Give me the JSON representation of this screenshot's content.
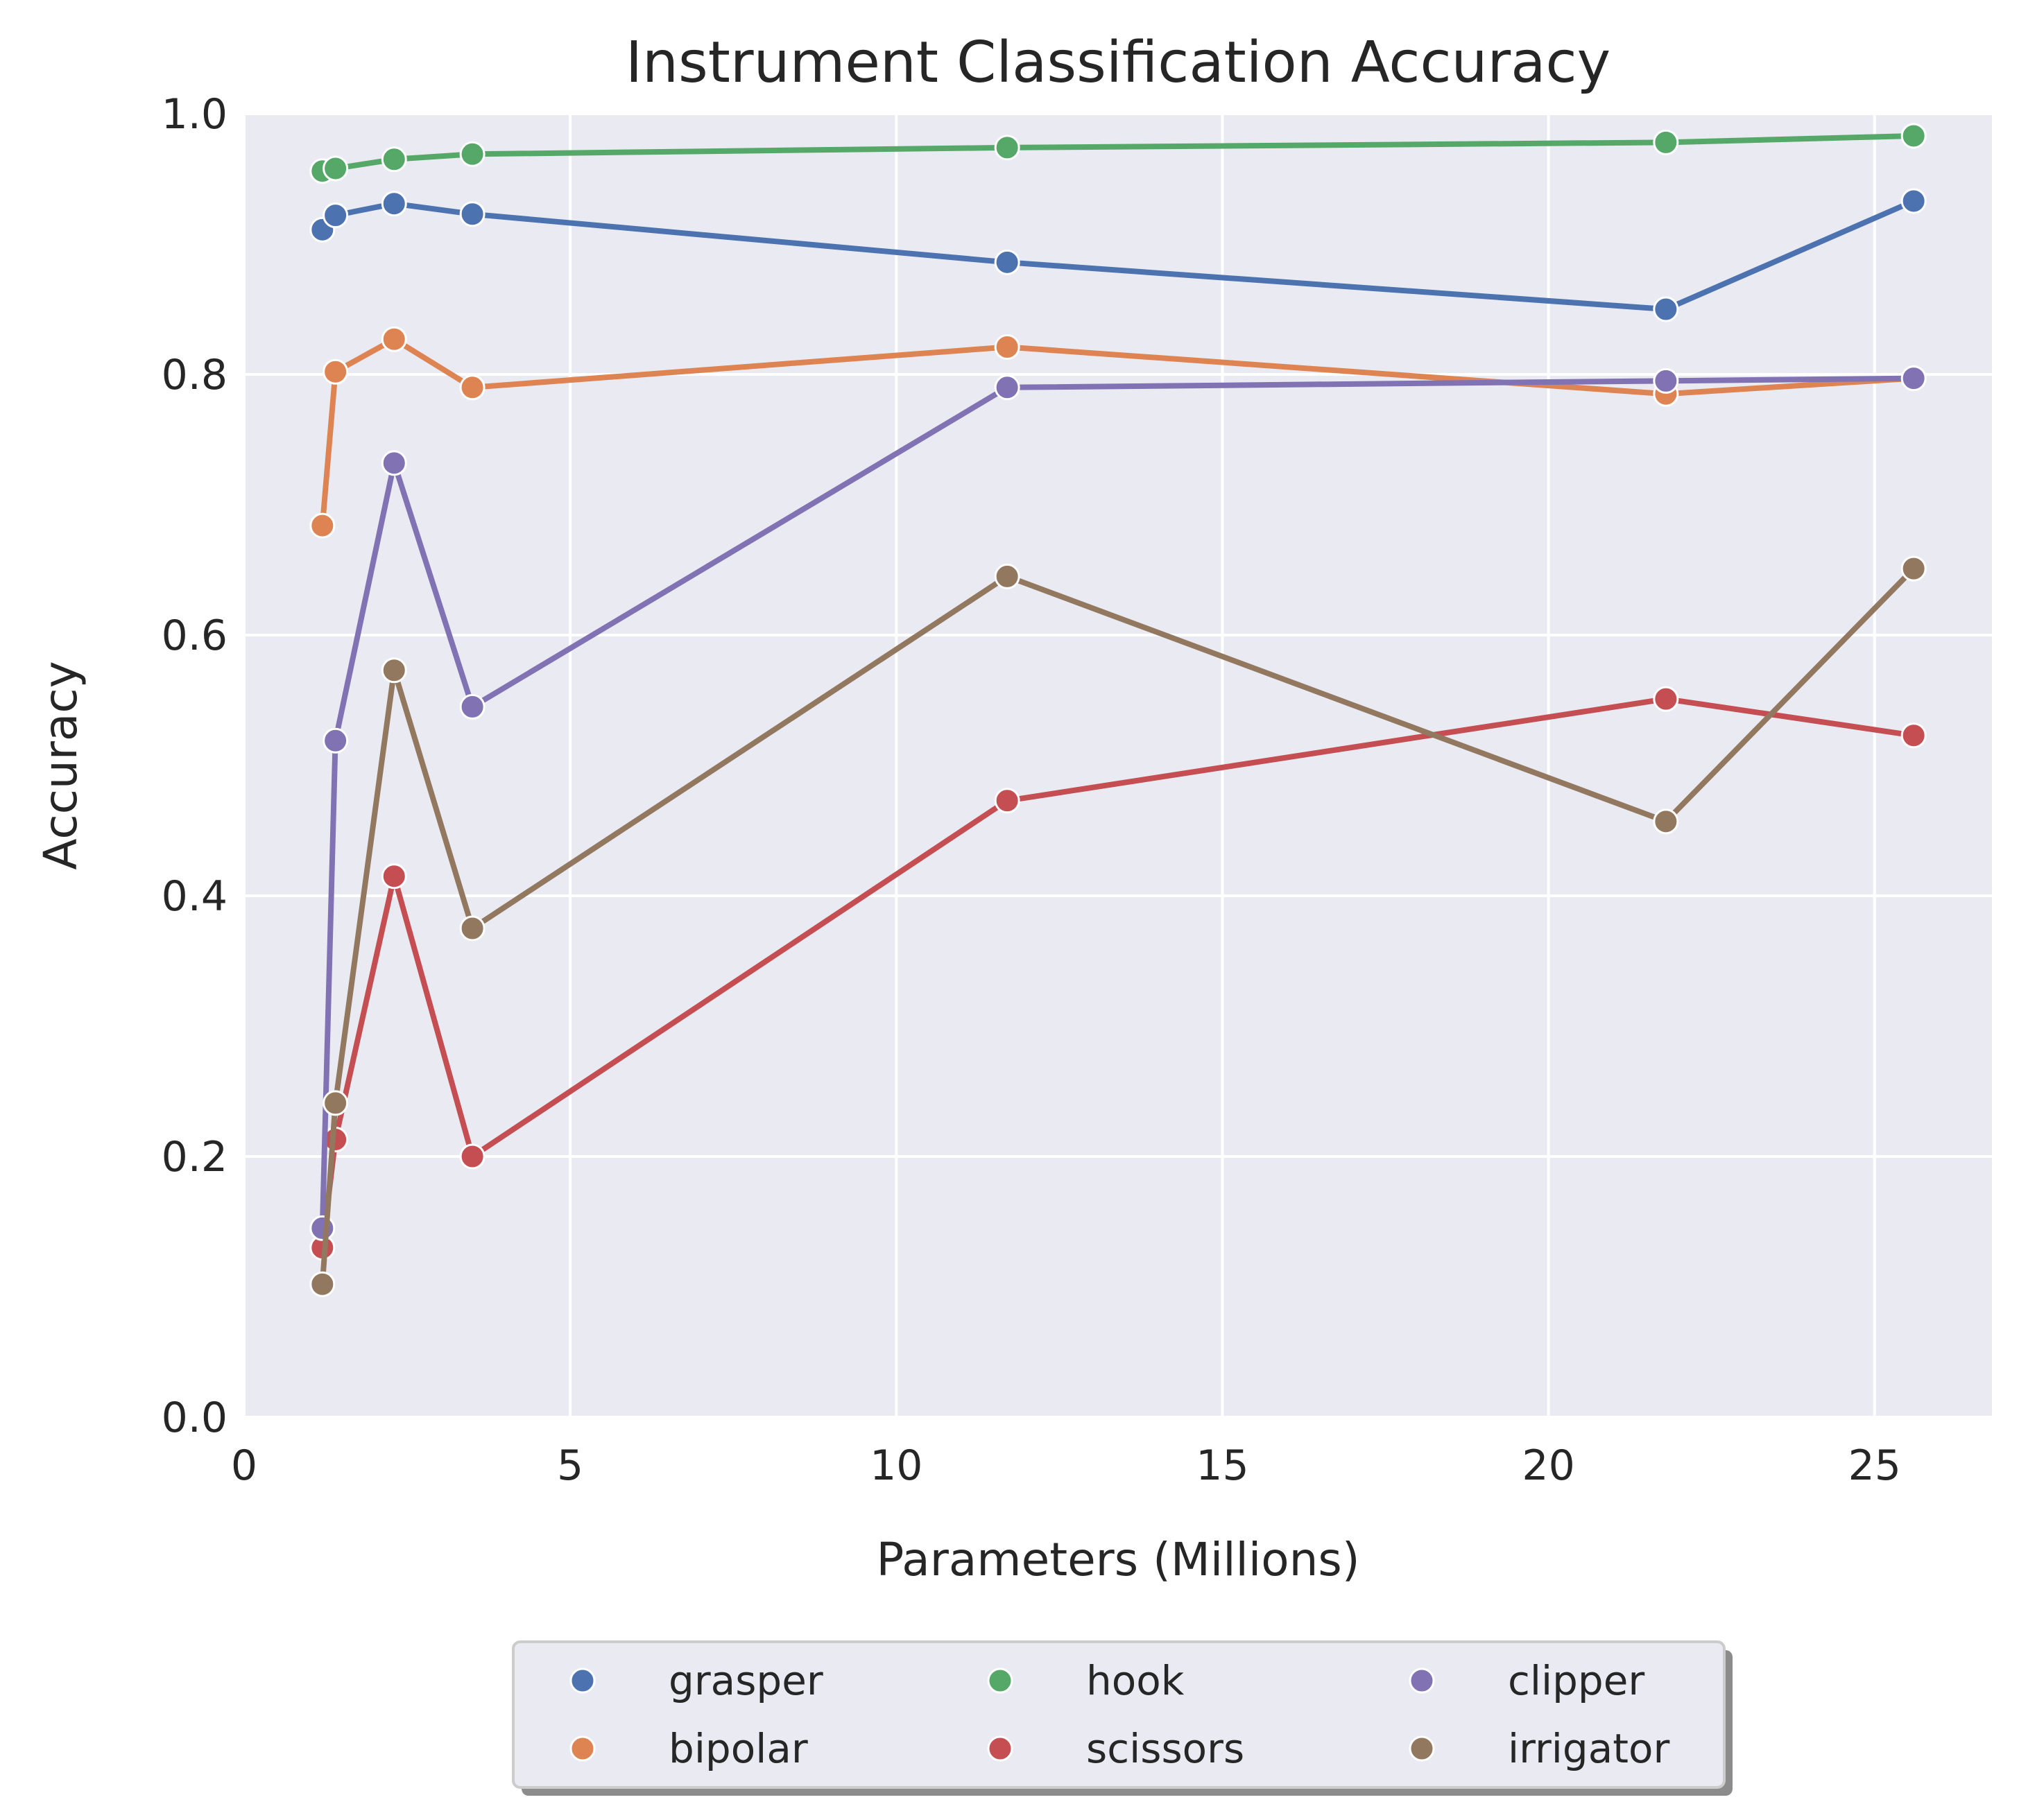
{
  "chart_data": {
    "type": "line",
    "title": "Instrument Classification Accuracy",
    "xlabel": "Parameters (Millions)",
    "ylabel": "Accuracy",
    "xlim": [
      0,
      26.8
    ],
    "ylim": [
      0.0,
      1.0
    ],
    "xticks": [
      0,
      5,
      10,
      15,
      20,
      25
    ],
    "xtick_labels": [
      "0",
      "5",
      "10",
      "15",
      "20",
      "25"
    ],
    "yticks": [
      0.0,
      0.2,
      0.4,
      0.6,
      0.8,
      1.0
    ],
    "ytick_labels": [
      "0.0",
      "0.2",
      "0.4",
      "0.6",
      "0.8",
      "1.0"
    ],
    "grid": true,
    "background_color": "#EAEAF2",
    "legend_position": "below plot, centered, 3 columns",
    "series": [
      {
        "name": "grasper",
        "color": "#4C72B0",
        "x": [
          1.2,
          1.4,
          2.3,
          3.5,
          11.7,
          21.8,
          25.6
        ],
        "y": [
          0.911,
          0.922,
          0.931,
          0.923,
          0.886,
          0.85,
          0.933
        ]
      },
      {
        "name": "bipolar",
        "color": "#DD8452",
        "x": [
          1.2,
          1.4,
          2.3,
          3.5,
          11.7,
          21.8,
          25.6
        ],
        "y": [
          0.684,
          0.802,
          0.827,
          0.79,
          0.821,
          0.785,
          0.797
        ]
      },
      {
        "name": "hook",
        "color": "#55A868",
        "x": [
          1.2,
          1.4,
          2.3,
          3.5,
          11.7,
          21.8,
          25.6
        ],
        "y": [
          0.956,
          0.958,
          0.965,
          0.969,
          0.974,
          0.978,
          0.983
        ]
      },
      {
        "name": "scissors",
        "color": "#C44E52",
        "x": [
          1.2,
          1.4,
          2.3,
          3.5,
          11.7,
          21.8,
          25.6
        ],
        "y": [
          0.13,
          0.213,
          0.415,
          0.2,
          0.473,
          0.551,
          0.523
        ]
      },
      {
        "name": "clipper",
        "color": "#8172B3",
        "x": [
          1.2,
          1.4,
          2.3,
          3.5,
          11.7,
          21.8,
          25.6
        ],
        "y": [
          0.145,
          0.519,
          0.732,
          0.545,
          0.79,
          0.795,
          0.797
        ]
      },
      {
        "name": "irrigator",
        "color": "#937860",
        "x": [
          1.2,
          1.4,
          2.3,
          3.5,
          11.7,
          21.8,
          25.6
        ],
        "y": [
          0.102,
          0.241,
          0.573,
          0.375,
          0.645,
          0.457,
          0.651
        ]
      }
    ]
  }
}
